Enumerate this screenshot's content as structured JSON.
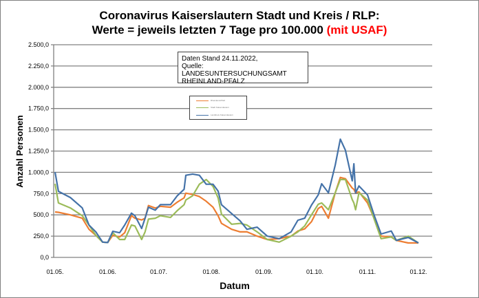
{
  "chart_data": {
    "type": "line",
    "title_line1": "Coronavirus Kaiserslautern Stadt und Kreis / RLP:",
    "title_line2": "Werte = jeweils letzten 7 Tage pro 100.000",
    "title_highlight": "(mit USAF)",
    "title_highlight_color": "#ff0000",
    "xlabel": "Datum",
    "ylabel": "Anzahl Personen",
    "ylim": [
      0,
      2500
    ],
    "xlim": [
      "2022-05-01",
      "2022-12-01"
    ],
    "grid": "horizontal",
    "legend_placement": "top-center",
    "yticks": [
      {
        "value": 0,
        "label": "0,0"
      },
      {
        "value": 250,
        "label": "250,0"
      },
      {
        "value": 500,
        "label": "500,0"
      },
      {
        "value": 750,
        "label": "750,0"
      },
      {
        "value": 1000,
        "label": "1.000,0"
      },
      {
        "value": 1250,
        "label": "1.250,0"
      },
      {
        "value": 1500,
        "label": "1.500,0"
      },
      {
        "value": 1750,
        "label": "1.750,0"
      },
      {
        "value": 2000,
        "label": "2.000,0"
      },
      {
        "value": 2250,
        "label": "2.250,0"
      },
      {
        "value": 2500,
        "label": "2.500,0"
      }
    ],
    "xticks": [
      {
        "value": "2022-05-01",
        "label": "01.05."
      },
      {
        "value": "2022-06-01",
        "label": "01.06."
      },
      {
        "value": "2022-07-01",
        "label": "01.07."
      },
      {
        "value": "2022-08-01",
        "label": "01.08."
      },
      {
        "value": "2022-09-01",
        "label": "01.09."
      },
      {
        "value": "2022-10-01",
        "label": "01.10."
      },
      {
        "value": "2022-11-01",
        "label": "01.11."
      },
      {
        "value": "2022-12-01",
        "label": "01.12."
      }
    ],
    "annotation": [
      "Daten Stand 24.11.2022,",
      "Quelle: LANDESUNTERSUCHUNGSAMT",
      "RHEINLAND-PFALZ"
    ],
    "x": [
      "2022-05-01",
      "2022-05-03",
      "2022-05-10",
      "2022-05-17",
      "2022-05-21",
      "2022-05-25",
      "2022-05-29",
      "2022-06-01",
      "2022-06-04",
      "2022-06-08",
      "2022-06-11",
      "2022-06-15",
      "2022-06-17",
      "2022-06-21",
      "2022-06-23",
      "2022-06-25",
      "2022-06-29",
      "2022-07-02",
      "2022-07-08",
      "2022-07-12",
      "2022-07-16",
      "2022-07-17",
      "2022-07-21",
      "2022-07-25",
      "2022-07-29",
      "2022-08-02",
      "2022-08-05",
      "2022-08-07",
      "2022-08-13",
      "2022-08-18",
      "2022-08-22",
      "2022-08-28",
      "2022-09-03",
      "2022-09-10",
      "2022-09-17",
      "2022-09-21",
      "2022-09-25",
      "2022-09-29",
      "2022-10-03",
      "2022-10-05",
      "2022-10-09",
      "2022-10-13",
      "2022-10-16",
      "2022-10-19",
      "2022-10-23",
      "2022-10-24",
      "2022-10-25",
      "2022-10-27",
      "2022-11-01",
      "2022-11-05",
      "2022-11-09",
      "2022-11-15",
      "2022-11-18",
      "2022-11-25",
      "2022-12-01"
    ],
    "series": [
      {
        "name": "Rheinland-Pfalz",
        "color": "#ed7d31",
        "values": [
          534,
          530,
          500,
          460,
          330,
          260,
          180,
          175,
          260,
          240,
          290,
          490,
          460,
          440,
          460,
          610,
          580,
          600,
          590,
          650,
          700,
          755,
          740,
          715,
          660,
          590,
          490,
          400,
          330,
          300,
          300,
          250,
          210,
          220,
          250,
          310,
          335,
          420,
          575,
          600,
          460,
          760,
          940,
          925,
          815,
          800,
          760,
          770,
          640,
          455,
          250,
          240,
          200,
          170,
          170
        ]
      },
      {
        "name": "Stadt Kaiserslautern",
        "color": "#9bbb59",
        "values": [
          866,
          640,
          582,
          490,
          380,
          260,
          180,
          175,
          290,
          210,
          210,
          380,
          370,
          210,
          300,
          450,
          460,
          490,
          470,
          550,
          620,
          675,
          725,
          860,
          915,
          835,
          700,
          510,
          390,
          400,
          380,
          300,
          210,
          180,
          250,
          300,
          370,
          500,
          625,
          640,
          560,
          760,
          915,
          915,
          680,
          640,
          560,
          760,
          675,
          445,
          220,
          240,
          200,
          250,
          170
        ]
      },
      {
        "name": "Landkreis Kaiserslautern",
        "color": "#4472a8",
        "values": [
          1003,
          777,
          704,
          582,
          380,
          300,
          180,
          175,
          307,
          290,
          380,
          520,
          490,
          340,
          460,
          590,
          555,
          620,
          620,
          725,
          800,
          965,
          980,
          965,
          860,
          860,
          780,
          620,
          515,
          430,
          330,
          355,
          250,
          220,
          300,
          437,
          460,
          615,
          735,
          866,
          760,
          1085,
          1390,
          1260,
          900,
          1100,
          760,
          840,
          735,
          490,
          275,
          310,
          200,
          235,
          170
        ]
      }
    ]
  }
}
